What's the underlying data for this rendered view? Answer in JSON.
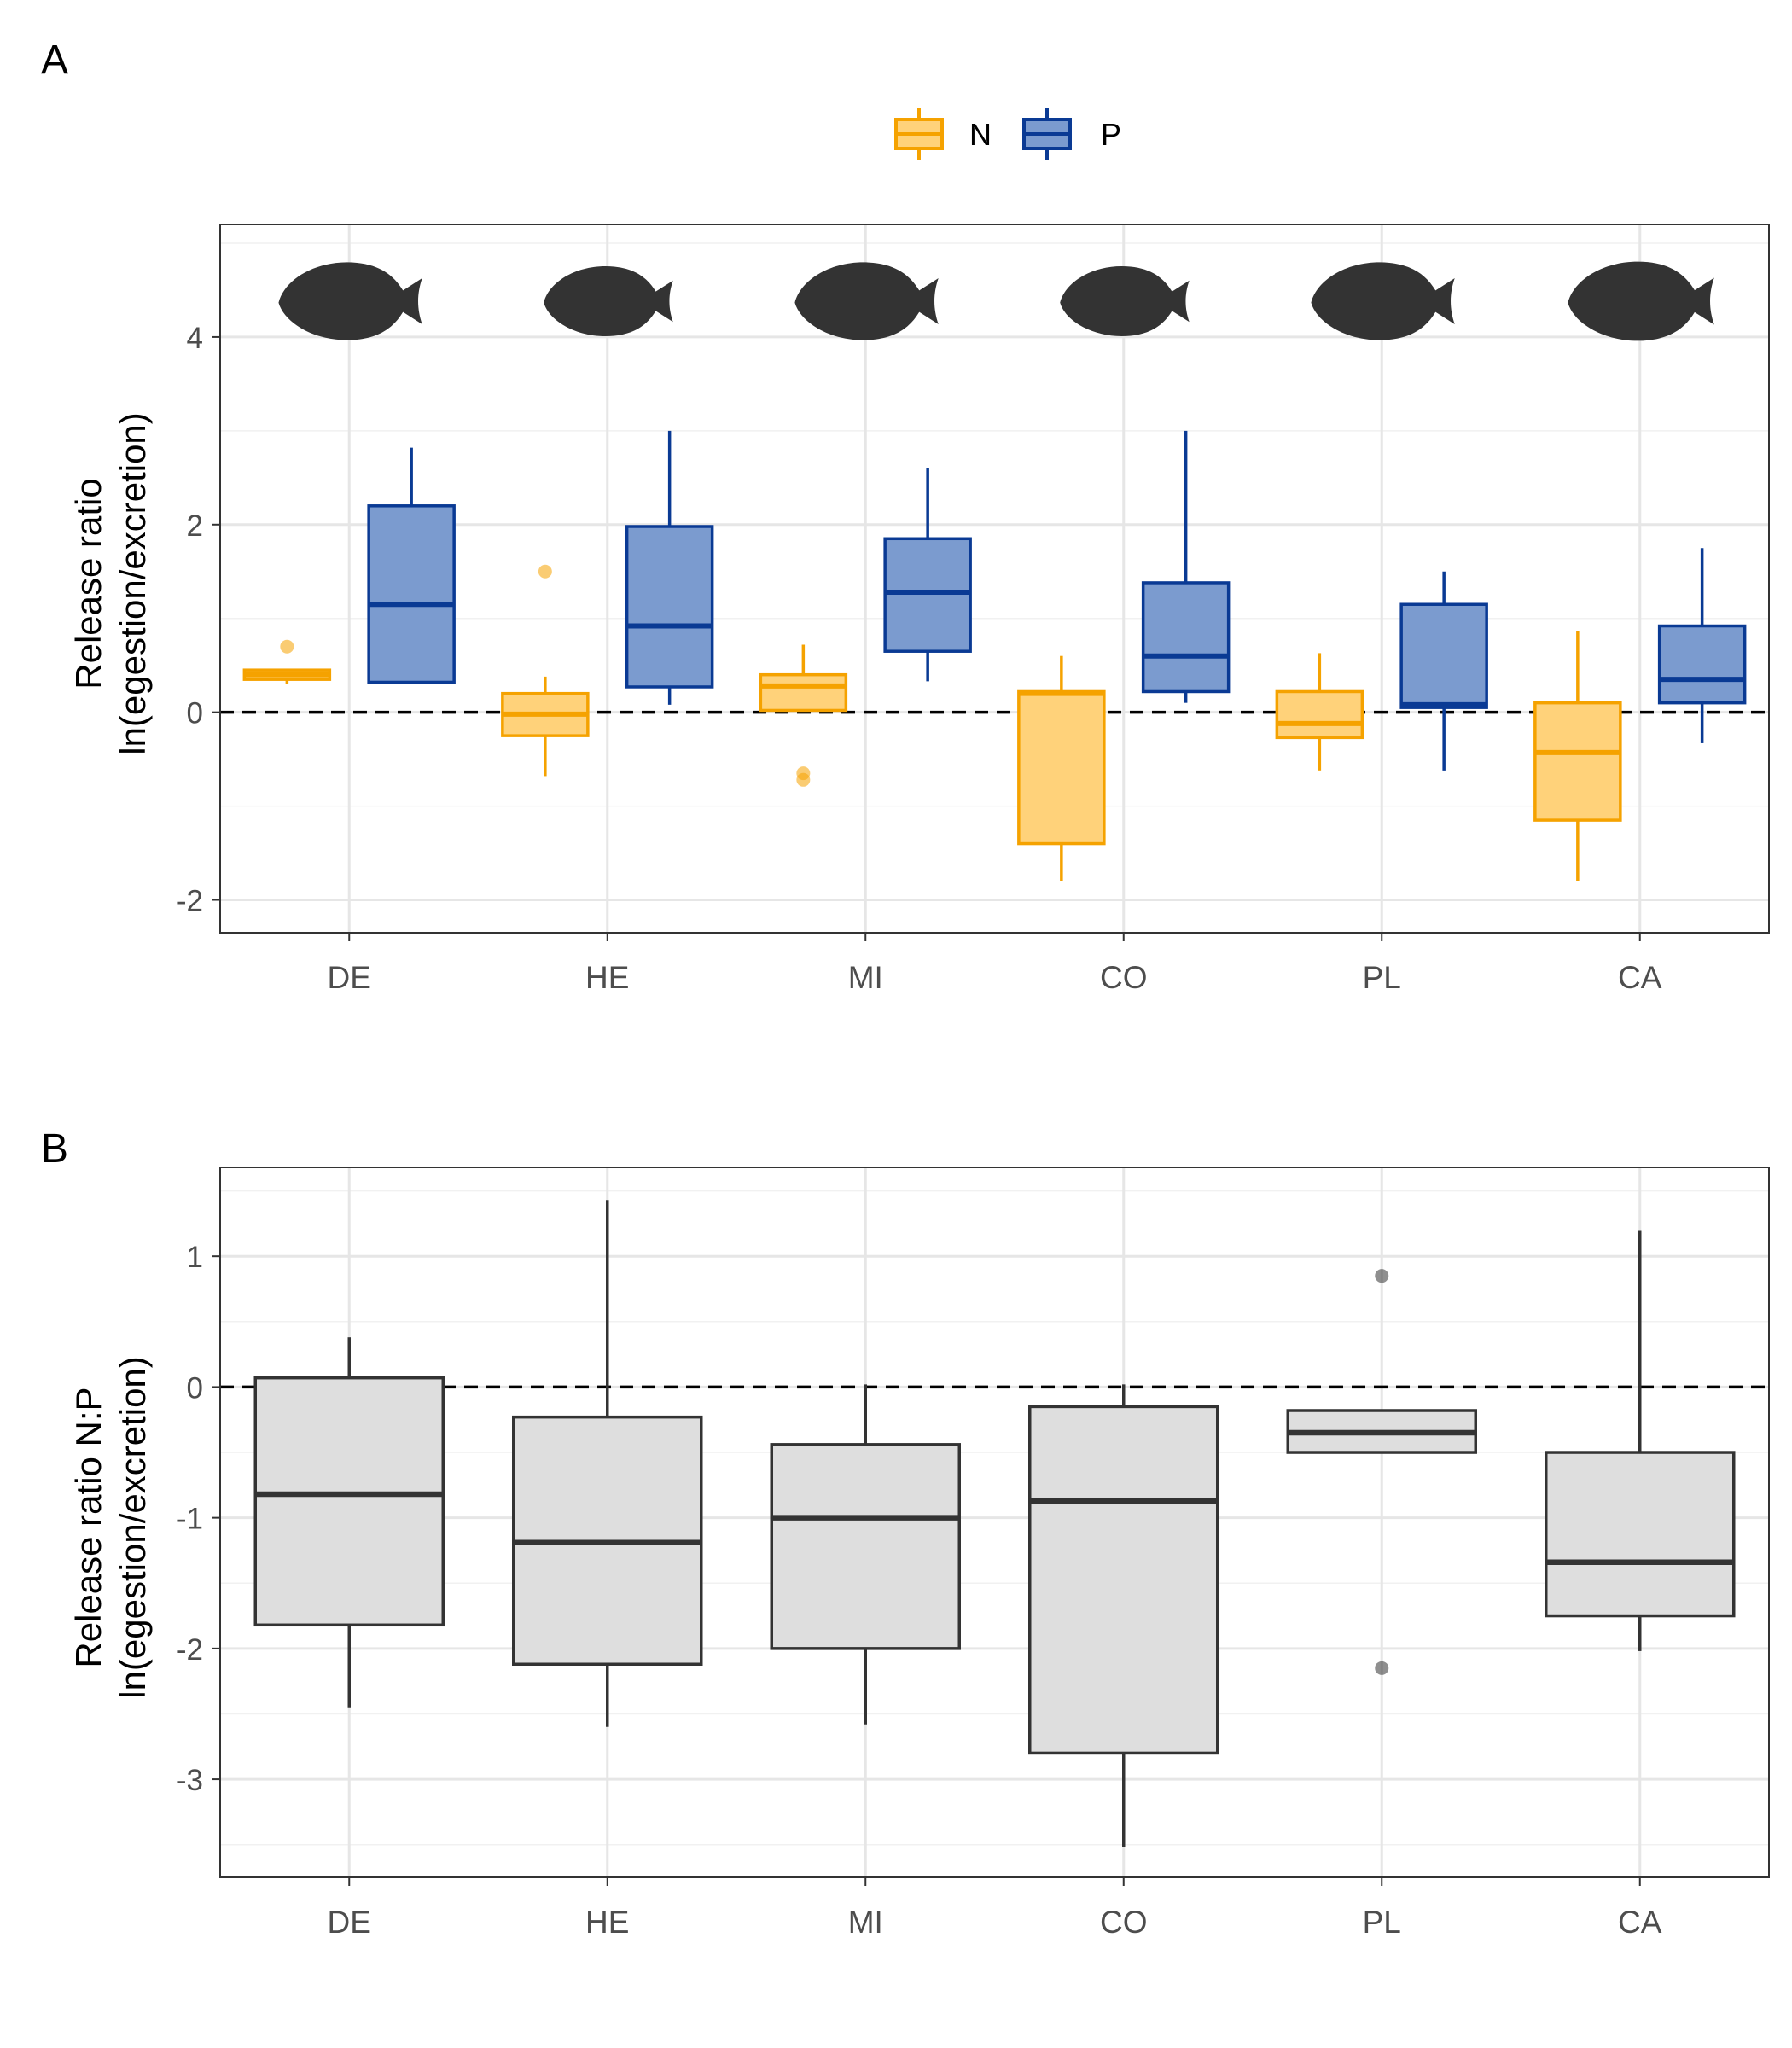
{
  "chart_data": [
    {
      "panel_label": "A",
      "type": "box",
      "ylabel_line1": "Release ratio",
      "ylabel_line2": "ln(egestion/excretion)",
      "ylim": [
        -2.35,
        5.2
      ],
      "yticks": [
        -2,
        0,
        2,
        4
      ],
      "categories": [
        "DE",
        "HE",
        "MI",
        "CO",
        "PL",
        "CA"
      ],
      "reference_line": 0,
      "legend": {
        "position": "top",
        "entries": [
          "N",
          "P"
        ]
      },
      "grid": true,
      "silhouettes": [
        "fish-de",
        "fish-he",
        "fish-mi",
        "fish-co",
        "fish-pl",
        "fish-ca"
      ],
      "series": [
        {
          "name": "N",
          "stroke": "#F5A200",
          "fill": "#FFD27A",
          "boxes": [
            {
              "min": 0.3,
              "q1": 0.35,
              "median": 0.4,
              "q3": 0.45,
              "max": 0.45,
              "outliers": [
                0.7
              ]
            },
            {
              "min": -0.68,
              "q1": -0.25,
              "median": -0.02,
              "q3": 0.2,
              "max": 0.38,
              "outliers": [
                1.5
              ]
            },
            {
              "min": 0.02,
              "q1": 0.02,
              "median": 0.28,
              "q3": 0.4,
              "max": 0.72,
              "outliers": [
                -0.65,
                -0.72
              ]
            },
            {
              "min": -1.8,
              "q1": -1.4,
              "median": 0.2,
              "q3": 0.22,
              "max": 0.6,
              "outliers": []
            },
            {
              "min": -0.62,
              "q1": -0.27,
              "median": -0.12,
              "q3": 0.22,
              "max": 0.63,
              "outliers": []
            },
            {
              "min": -1.8,
              "q1": -1.15,
              "median": -0.43,
              "q3": 0.1,
              "max": 0.87,
              "outliers": []
            }
          ]
        },
        {
          "name": "P",
          "stroke": "#0A3A94",
          "fill": "#7B9BCF",
          "boxes": [
            {
              "min": 0.32,
              "q1": 0.32,
              "median": 1.15,
              "q3": 2.2,
              "max": 2.82,
              "outliers": []
            },
            {
              "min": 0.08,
              "q1": 0.27,
              "median": 0.92,
              "q3": 1.98,
              "max": 3.0,
              "outliers": []
            },
            {
              "min": 0.33,
              "q1": 0.65,
              "median": 1.28,
              "q3": 1.85,
              "max": 2.6,
              "outliers": []
            },
            {
              "min": 0.1,
              "q1": 0.22,
              "median": 0.6,
              "q3": 1.38,
              "max": 3.0,
              "outliers": []
            },
            {
              "min": -0.62,
              "q1": 0.05,
              "median": 0.08,
              "q3": 1.15,
              "max": 1.5,
              "outliers": []
            },
            {
              "min": -0.33,
              "q1": 0.1,
              "median": 0.35,
              "q3": 0.92,
              "max": 1.75,
              "outliers": []
            }
          ]
        }
      ]
    },
    {
      "panel_label": "B",
      "type": "box",
      "ylabel_line1": "Release ratio N:P",
      "ylabel_line2": "ln(egestion/excretion)",
      "ylim": [
        -3.75,
        1.68
      ],
      "yticks": [
        -3,
        -2,
        -1,
        0,
        1
      ],
      "categories": [
        "DE",
        "HE",
        "MI",
        "CO",
        "PL",
        "CA"
      ],
      "reference_line": 0,
      "grid": true,
      "series": [
        {
          "name": "",
          "stroke": "#333333",
          "fill": "#DEDEDE",
          "boxes": [
            {
              "min": -2.45,
              "q1": -1.82,
              "median": -0.82,
              "q3": 0.07,
              "max": 0.38,
              "outliers": []
            },
            {
              "min": -2.6,
              "q1": -2.12,
              "median": -1.19,
              "q3": -0.23,
              "max": 1.43,
              "outliers": []
            },
            {
              "min": -2.58,
              "q1": -2.0,
              "median": -1.0,
              "q3": -0.44,
              "max": 0.02,
              "outliers": []
            },
            {
              "min": -3.52,
              "q1": -2.8,
              "median": -0.87,
              "q3": -0.15,
              "max": 0.02,
              "outliers": []
            },
            {
              "min": -0.5,
              "q1": -0.5,
              "median": -0.35,
              "q3": -0.18,
              "max": -0.18,
              "outliers": [
                0.85,
                -2.15
              ]
            },
            {
              "min": -2.02,
              "q1": -1.75,
              "median": -1.34,
              "q3": -0.5,
              "max": 1.2,
              "outliers": []
            }
          ]
        }
      ]
    }
  ]
}
